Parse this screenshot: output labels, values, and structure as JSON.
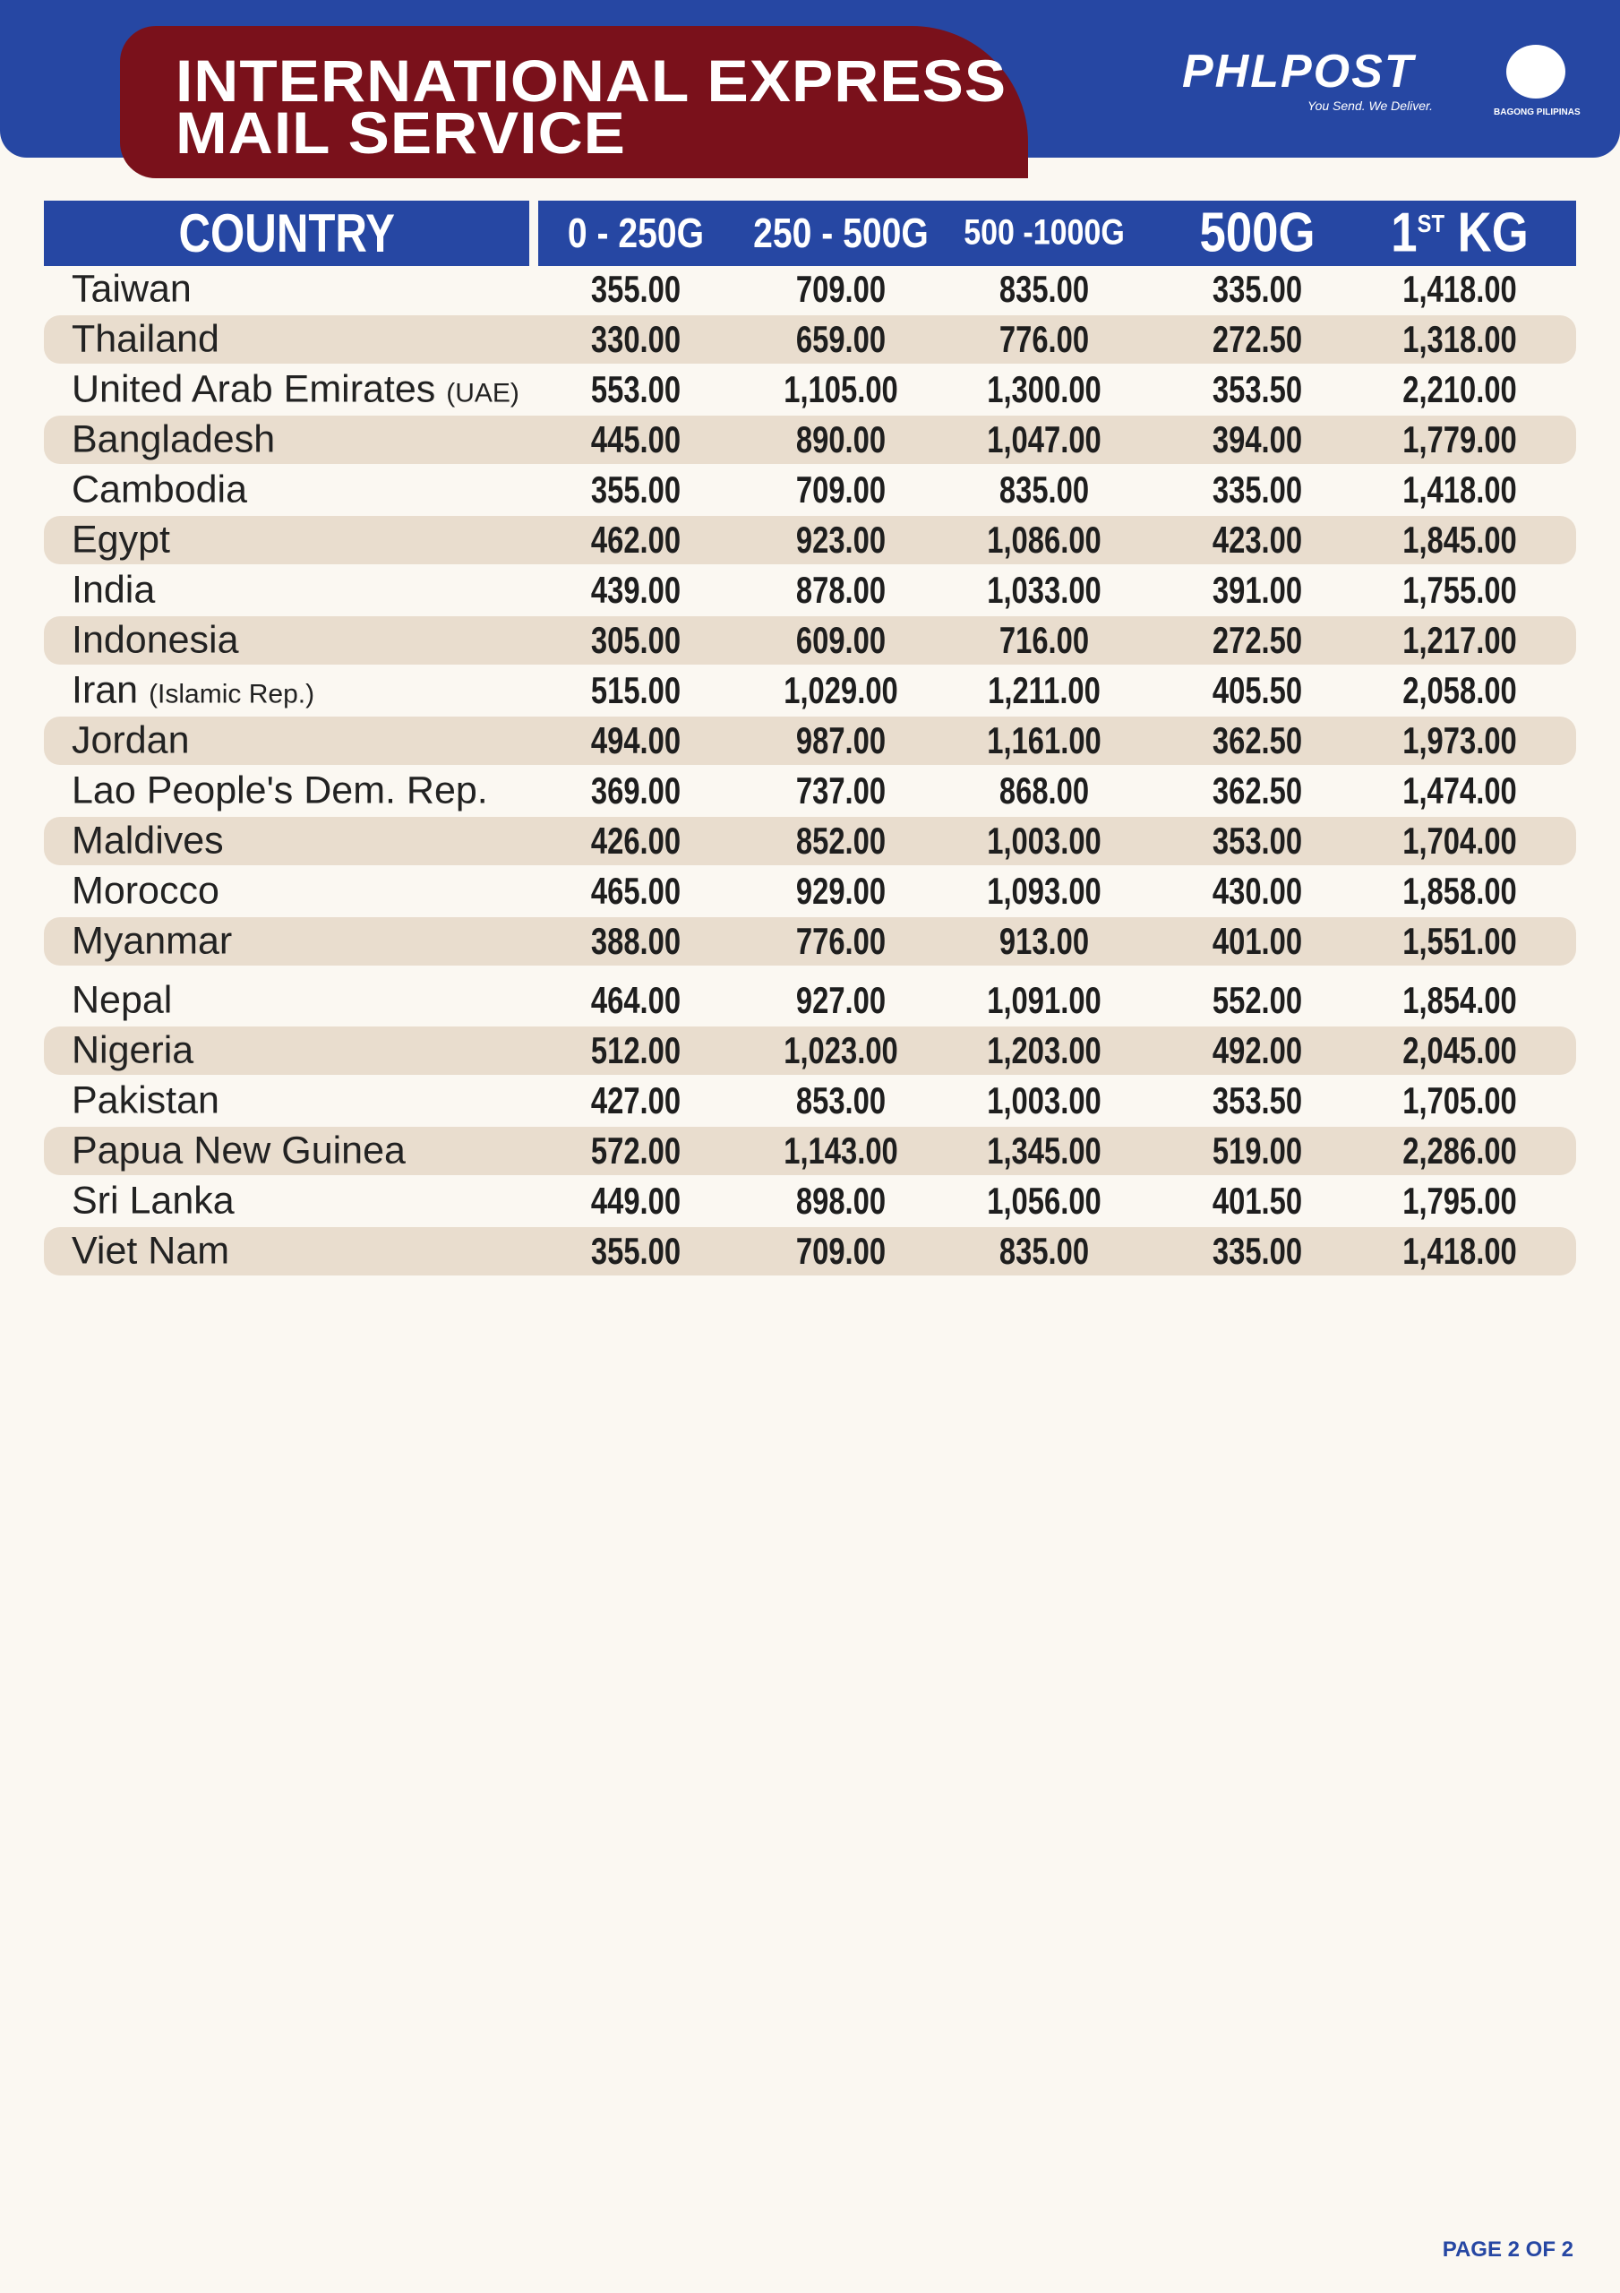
{
  "header": {
    "title_lines": [
      "INTERNATIONAL EXPRESS",
      "MAIL SERVICE"
    ],
    "logo": "PHLPOST",
    "tagline": "You Send. We Deliver.",
    "seal_text": "BAGONG PILIPINAS"
  },
  "table": {
    "columns": [
      "COUNTRY",
      "0 - 250G",
      "250 - 500G",
      "500 -1000G",
      "500G",
      {
        "main": "1",
        "sup": "ST",
        "suffix": "KG"
      }
    ],
    "rows": [
      [
        {
          "name": "Taiwan"
        },
        "355.00",
        "709.00",
        "835.00",
        "335.00",
        "1,418.00"
      ],
      [
        {
          "name": "Thailand"
        },
        "330.00",
        "659.00",
        "776.00",
        "272.50",
        "1,318.00"
      ],
      [
        {
          "name": "United Arab Emirates",
          "note": "(UAE)"
        },
        "553.00",
        "1,105.00",
        "1,300.00",
        "353.50",
        "2,210.00"
      ],
      [
        {
          "name": "Bangladesh"
        },
        "445.00",
        "890.00",
        "1,047.00",
        "394.00",
        "1,779.00"
      ],
      [
        {
          "name": "Cambodia"
        },
        "355.00",
        "709.00",
        "835.00",
        "335.00",
        "1,418.00"
      ],
      [
        {
          "name": "Egypt"
        },
        "462.00",
        "923.00",
        "1,086.00",
        "423.00",
        "1,845.00"
      ],
      [
        {
          "name": "India"
        },
        "439.00",
        "878.00",
        "1,033.00",
        "391.00",
        "1,755.00"
      ],
      [
        {
          "name": "Indonesia"
        },
        "305.00",
        "609.00",
        "716.00",
        "272.50",
        "1,217.00"
      ],
      [
        {
          "name": "Iran",
          "note": "(Islamic Rep.)"
        },
        "515.00",
        "1,029.00",
        "1,211.00",
        "405.50",
        "2,058.00"
      ],
      [
        {
          "name": "Jordan"
        },
        "494.00",
        "987.00",
        "1,161.00",
        "362.50",
        "1,973.00"
      ],
      [
        {
          "name": "Lao People's Dem. Rep."
        },
        "369.00",
        "737.00",
        "868.00",
        "362.50",
        "1,474.00"
      ],
      [
        {
          "name": "Maldives"
        },
        "426.00",
        "852.00",
        "1,003.00",
        "353.00",
        "1,704.00"
      ],
      [
        {
          "name": "Morocco"
        },
        "465.00",
        "929.00",
        "1,093.00",
        "430.00",
        "1,858.00"
      ],
      [
        {
          "name": "Myanmar"
        },
        "388.00",
        "776.00",
        "913.00",
        "401.00",
        "1,551.00"
      ],
      [
        {
          "name": "Nepal"
        },
        "464.00",
        "927.00",
        "1,091.00",
        "552.00",
        "1,854.00"
      ],
      [
        {
          "name": "Nigeria"
        },
        "512.00",
        "1,023.00",
        "1,203.00",
        "492.00",
        "2,045.00"
      ],
      [
        {
          "name": "Pakistan"
        },
        "427.00",
        "853.00",
        "1,003.00",
        "353.50",
        "1,705.00"
      ],
      [
        {
          "name": "Papua New Guinea"
        },
        "572.00",
        "1,143.00",
        "1,345.00",
        "519.00",
        "2,286.00"
      ],
      [
        {
          "name": "Sri Lanka"
        },
        "449.00",
        "898.00",
        "1,056.00",
        "401.50",
        "1,795.00"
      ],
      [
        {
          "name": "Viet Nam"
        },
        "355.00",
        "709.00",
        "835.00",
        "335.00",
        "1,418.00"
      ]
    ]
  },
  "footer": "PAGE 2 OF 2"
}
